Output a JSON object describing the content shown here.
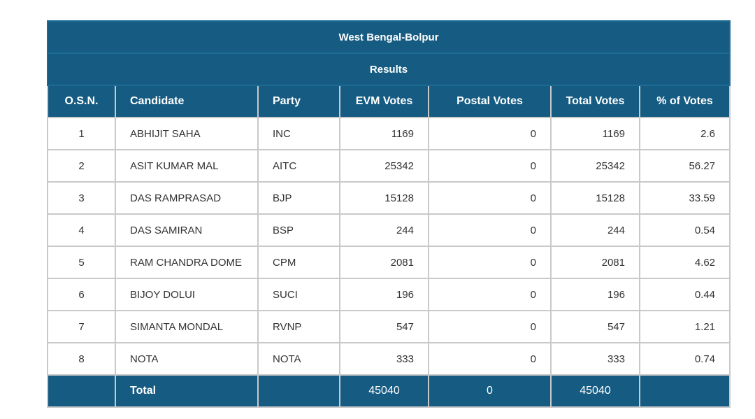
{
  "table": {
    "state_title": "West Bengal-Bolpur",
    "section_title": "Results",
    "columns": [
      "O.S.N.",
      "Candidate",
      "Party",
      "EVM Votes",
      "Postal Votes",
      "Total Votes",
      "% of Votes"
    ],
    "rows": [
      {
        "osn": "1",
        "candidate": "ABHIJIT SAHA",
        "party": "INC",
        "evm": "1169",
        "postal": "0",
        "total": "1169",
        "pct": "2.6"
      },
      {
        "osn": "2",
        "candidate": "ASIT KUMAR MAL",
        "party": "AITC",
        "evm": "25342",
        "postal": "0",
        "total": "25342",
        "pct": "56.27"
      },
      {
        "osn": "3",
        "candidate": "DAS RAMPRASAD",
        "party": "BJP",
        "evm": "15128",
        "postal": "0",
        "total": "15128",
        "pct": "33.59"
      },
      {
        "osn": "4",
        "candidate": "DAS SAMIRAN",
        "party": "BSP",
        "evm": "244",
        "postal": "0",
        "total": "244",
        "pct": "0.54"
      },
      {
        "osn": "5",
        "candidate": "RAM CHANDRA DOME",
        "party": "CPM",
        "evm": "2081",
        "postal": "0",
        "total": "2081",
        "pct": "4.62"
      },
      {
        "osn": "6",
        "candidate": "BIJOY DOLUI",
        "party": "SUCI",
        "evm": "196",
        "postal": "0",
        "total": "196",
        "pct": "0.44"
      },
      {
        "osn": "7",
        "candidate": "SIMANTA MONDAL",
        "party": "RVNP",
        "evm": "547",
        "postal": "0",
        "total": "547",
        "pct": "1.21"
      },
      {
        "osn": "8",
        "candidate": "NOTA",
        "party": "NOTA",
        "evm": "333",
        "postal": "0",
        "total": "333",
        "pct": "0.74"
      }
    ],
    "totals": {
      "label": "Total",
      "evm": "45040",
      "postal": "0",
      "total": "45040"
    }
  }
}
